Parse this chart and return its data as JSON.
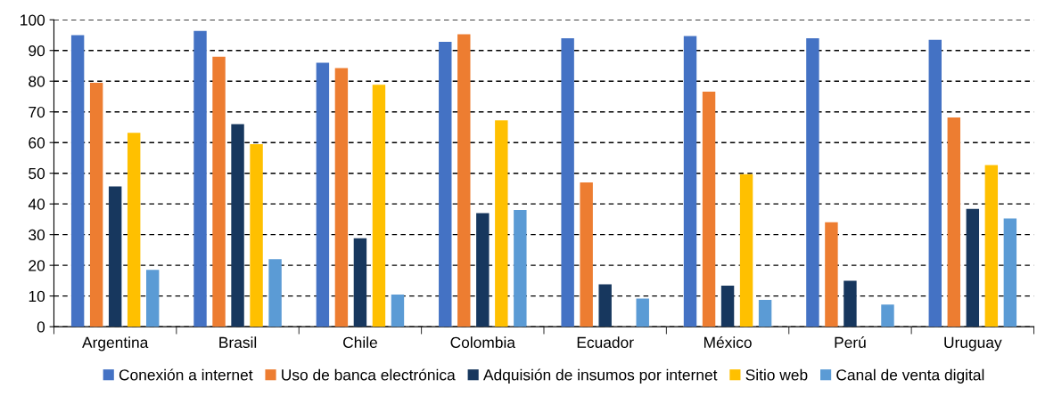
{
  "chart_data": {
    "type": "bar",
    "categories": [
      "Argentina",
      "Brasil",
      "Chile",
      "Colombia",
      "Ecuador",
      "México",
      "Perú",
      "Uruguay"
    ],
    "series": [
      {
        "name": "Conexión a internet",
        "color": "#4472c4",
        "values": [
          95,
          96.4,
          86,
          92.8,
          94,
          94.7,
          94,
          93.5
        ]
      },
      {
        "name": "Uso de banca electrónica",
        "color": "#ed7d31",
        "values": [
          79.5,
          88,
          84.3,
          95.3,
          47,
          76.6,
          34,
          68.2
        ]
      },
      {
        "name": "Adquisión de insumos por internet",
        "color": "#17375e",
        "values": [
          45.7,
          66,
          28.8,
          37,
          13.8,
          13.4,
          15,
          38.4
        ]
      },
      {
        "name": "Sitio web",
        "color": "#ffc000",
        "values": [
          63.2,
          59.5,
          78.8,
          67.2,
          null,
          49.7,
          null,
          52.7
        ]
      },
      {
        "name": "Canal de venta digital",
        "color": "#5b9bd5",
        "values": [
          18.5,
          22,
          10.5,
          38,
          9.2,
          8.7,
          7.2,
          35.3
        ]
      }
    ],
    "ylim": [
      0,
      100
    ],
    "yticks": [
      0,
      10,
      20,
      30,
      40,
      50,
      60,
      70,
      80,
      90,
      100
    ],
    "grid": "y",
    "legend": "bottom"
  }
}
